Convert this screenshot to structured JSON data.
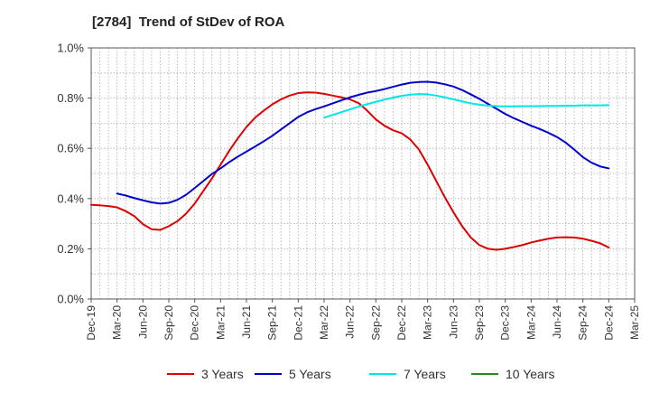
{
  "chart_data": {
    "type": "line",
    "title": "[2784]  Trend of StDev of ROA",
    "xlabel": "",
    "ylabel": "",
    "x_ticks": [
      "Dec-19",
      "Mar-20",
      "Jun-20",
      "Sep-20",
      "Dec-20",
      "Mar-21",
      "Jun-21",
      "Sep-21",
      "Dec-21",
      "Mar-22",
      "Jun-22",
      "Sep-22",
      "Dec-22",
      "Mar-23",
      "Jun-23",
      "Sep-23",
      "Dec-23",
      "Mar-24",
      "Jun-24",
      "Sep-24",
      "Dec-24",
      "Mar-25"
    ],
    "y_ticks": [
      "0.0%",
      "0.2%",
      "0.4%",
      "0.6%",
      "0.8%",
      "1.0%"
    ],
    "ylim": [
      0,
      1.0
    ],
    "y_unit": "%",
    "grid": true,
    "legend_position": "bottom",
    "series": [
      {
        "name": "3 Years",
        "color": "#dd0000",
        "points": [
          [
            "Dec-19",
            0.375
          ],
          [
            "Jan-20",
            0.373
          ],
          [
            "Feb-20",
            0.37
          ],
          [
            "Mar-20",
            0.365
          ],
          [
            "Apr-20",
            0.35
          ],
          [
            "May-20",
            0.33
          ],
          [
            "Jun-20",
            0.298
          ],
          [
            "Jul-20",
            0.278
          ],
          [
            "Aug-20",
            0.275
          ],
          [
            "Sep-20",
            0.29
          ],
          [
            "Oct-20",
            0.31
          ],
          [
            "Nov-20",
            0.34
          ],
          [
            "Dec-20",
            0.38
          ],
          [
            "Jan-21",
            0.43
          ],
          [
            "Feb-21",
            0.48
          ],
          [
            "Mar-21",
            0.535
          ],
          [
            "Apr-21",
            0.59
          ],
          [
            "May-21",
            0.64
          ],
          [
            "Jun-21",
            0.685
          ],
          [
            "Jul-21",
            0.722
          ],
          [
            "Aug-21",
            0.75
          ],
          [
            "Sep-21",
            0.775
          ],
          [
            "Oct-21",
            0.795
          ],
          [
            "Nov-21",
            0.81
          ],
          [
            "Dec-21",
            0.82
          ],
          [
            "Jan-22",
            0.823
          ],
          [
            "Feb-22",
            0.822
          ],
          [
            "Mar-22",
            0.817
          ],
          [
            "Apr-22",
            0.81
          ],
          [
            "May-22",
            0.803
          ],
          [
            "Jun-22",
            0.795
          ],
          [
            "Jul-22",
            0.78
          ],
          [
            "Aug-22",
            0.75
          ],
          [
            "Sep-22",
            0.715
          ],
          [
            "Oct-22",
            0.69
          ],
          [
            "Nov-22",
            0.672
          ],
          [
            "Dec-22",
            0.66
          ],
          [
            "Jan-23",
            0.635
          ],
          [
            "Feb-23",
            0.595
          ],
          [
            "Mar-23",
            0.535
          ],
          [
            "Apr-23",
            0.47
          ],
          [
            "May-23",
            0.405
          ],
          [
            "Jun-23",
            0.345
          ],
          [
            "Jul-23",
            0.29
          ],
          [
            "Aug-23",
            0.245
          ],
          [
            "Sep-23",
            0.215
          ],
          [
            "Oct-23",
            0.2
          ],
          [
            "Nov-23",
            0.196
          ],
          [
            "Dec-23",
            0.2
          ],
          [
            "Jan-24",
            0.207
          ],
          [
            "Feb-24",
            0.215
          ],
          [
            "Mar-24",
            0.225
          ],
          [
            "Apr-24",
            0.233
          ],
          [
            "May-24",
            0.24
          ],
          [
            "Jun-24",
            0.245
          ],
          [
            "Jul-24",
            0.246
          ],
          [
            "Aug-24",
            0.245
          ],
          [
            "Sep-24",
            0.24
          ],
          [
            "Oct-24",
            0.232
          ],
          [
            "Nov-24",
            0.222
          ],
          [
            "Dec-24",
            0.205
          ]
        ]
      },
      {
        "name": "5 Years",
        "color": "#0000cc",
        "points": [
          [
            "Mar-20",
            0.42
          ],
          [
            "Apr-20",
            0.412
          ],
          [
            "May-20",
            0.402
          ],
          [
            "Jun-20",
            0.393
          ],
          [
            "Jul-20",
            0.385
          ],
          [
            "Aug-20",
            0.38
          ],
          [
            "Sep-20",
            0.383
          ],
          [
            "Oct-20",
            0.395
          ],
          [
            "Nov-20",
            0.415
          ],
          [
            "Dec-20",
            0.442
          ],
          [
            "Jan-21",
            0.47
          ],
          [
            "Feb-21",
            0.498
          ],
          [
            "Mar-21",
            0.52
          ],
          [
            "Apr-21",
            0.545
          ],
          [
            "May-21",
            0.567
          ],
          [
            "Jun-21",
            0.587
          ],
          [
            "Jul-21",
            0.607
          ],
          [
            "Aug-21",
            0.628
          ],
          [
            "Sep-21",
            0.65
          ],
          [
            "Oct-21",
            0.675
          ],
          [
            "Nov-21",
            0.7
          ],
          [
            "Dec-21",
            0.725
          ],
          [
            "Jan-22",
            0.743
          ],
          [
            "Feb-22",
            0.756
          ],
          [
            "Mar-22",
            0.767
          ],
          [
            "Apr-22",
            0.779
          ],
          [
            "May-22",
            0.791
          ],
          [
            "Jun-22",
            0.803
          ],
          [
            "Jul-22",
            0.813
          ],
          [
            "Aug-22",
            0.822
          ],
          [
            "Sep-22",
            0.828
          ],
          [
            "Oct-22",
            0.836
          ],
          [
            "Nov-22",
            0.845
          ],
          [
            "Dec-22",
            0.854
          ],
          [
            "Jan-23",
            0.861
          ],
          [
            "Feb-23",
            0.864
          ],
          [
            "Mar-23",
            0.865
          ],
          [
            "Apr-23",
            0.862
          ],
          [
            "May-23",
            0.855
          ],
          [
            "Jun-23",
            0.846
          ],
          [
            "Jul-23",
            0.832
          ],
          [
            "Aug-23",
            0.815
          ],
          [
            "Sep-23",
            0.797
          ],
          [
            "Oct-23",
            0.777
          ],
          [
            "Nov-23",
            0.757
          ],
          [
            "Dec-23",
            0.737
          ],
          [
            "Jan-24",
            0.72
          ],
          [
            "Feb-24",
            0.705
          ],
          [
            "Mar-24",
            0.69
          ],
          [
            "Apr-24",
            0.677
          ],
          [
            "May-24",
            0.662
          ],
          [
            "Jun-24",
            0.645
          ],
          [
            "Jul-24",
            0.623
          ],
          [
            "Aug-24",
            0.595
          ],
          [
            "Sep-24",
            0.565
          ],
          [
            "Oct-24",
            0.543
          ],
          [
            "Nov-24",
            0.528
          ],
          [
            "Dec-24",
            0.52
          ]
        ]
      },
      {
        "name": "7 Years",
        "color": "#00e5e5",
        "points": [
          [
            "Mar-22",
            0.722
          ],
          [
            "Apr-22",
            0.733
          ],
          [
            "May-22",
            0.744
          ],
          [
            "Jun-22",
            0.755
          ],
          [
            "Jul-22",
            0.766
          ],
          [
            "Aug-22",
            0.776
          ],
          [
            "Sep-22",
            0.785
          ],
          [
            "Oct-22",
            0.794
          ],
          [
            "Nov-22",
            0.802
          ],
          [
            "Dec-22",
            0.809
          ],
          [
            "Jan-23",
            0.814
          ],
          [
            "Feb-23",
            0.816
          ],
          [
            "Mar-23",
            0.815
          ],
          [
            "Apr-23",
            0.81
          ],
          [
            "May-23",
            0.803
          ],
          [
            "Jun-23",
            0.795
          ],
          [
            "Jul-23",
            0.787
          ],
          [
            "Aug-23",
            0.779
          ],
          [
            "Sep-23",
            0.774
          ],
          [
            "Oct-23",
            0.77
          ],
          [
            "Nov-23",
            0.768
          ],
          [
            "Dec-23",
            0.767
          ],
          [
            "Jan-24",
            0.767
          ],
          [
            "Feb-24",
            0.768
          ],
          [
            "Mar-24",
            0.768
          ],
          [
            "Apr-24",
            0.768
          ],
          [
            "May-24",
            0.769
          ],
          [
            "Jun-24",
            0.769
          ],
          [
            "Jul-24",
            0.77
          ],
          [
            "Aug-24",
            0.77
          ],
          [
            "Sep-24",
            0.771
          ],
          [
            "Oct-24",
            0.771
          ],
          [
            "Nov-24",
            0.771
          ],
          [
            "Dec-24",
            0.772
          ]
        ]
      },
      {
        "name": "10 Years",
        "color": "#228b22",
        "points": []
      }
    ]
  }
}
